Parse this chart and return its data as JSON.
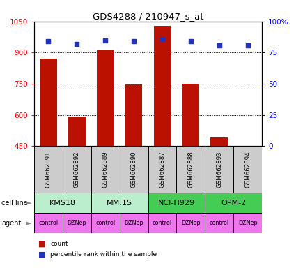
{
  "title": "GDS4288 / 210947_s_at",
  "samples": [
    "GSM662891",
    "GSM662892",
    "GSM662889",
    "GSM662890",
    "GSM662887",
    "GSM662888",
    "GSM662893",
    "GSM662894"
  ],
  "counts": [
    870,
    592,
    910,
    748,
    1030,
    750,
    490,
    452
  ],
  "percentile_ranks": [
    84,
    82,
    85,
    84,
    86,
    84,
    81,
    81
  ],
  "cell_lines": [
    {
      "label": "KMS18",
      "span": [
        0,
        2
      ],
      "color": "#aaeebb"
    },
    {
      "label": "MM.1S",
      "span": [
        2,
        4
      ],
      "color": "#aaeebb"
    },
    {
      "label": "NCI-H929",
      "span": [
        4,
        6
      ],
      "color": "#44dd66"
    },
    {
      "label": "OPM-2",
      "span": [
        6,
        8
      ],
      "color": "#44dd66"
    }
  ],
  "agents": [
    "control",
    "DZNep",
    "control",
    "DZNep",
    "control",
    "DZNep",
    "control",
    "DZNep"
  ],
  "ylim_left": [
    450,
    1050
  ],
  "ylim_right": [
    0,
    100
  ],
  "yticks_left": [
    450,
    600,
    750,
    900,
    1050
  ],
  "yticks_right": [
    0,
    25,
    50,
    75,
    100
  ],
  "ytick_labels_right": [
    "0",
    "25",
    "50",
    "75",
    "100%"
  ],
  "bar_color": "#bb1100",
  "dot_color": "#2233bb",
  "cell_line_color_light": "#bbeecc",
  "cell_line_color_dark": "#44cc55",
  "agent_color": "#ee77ee",
  "sample_bg_color": "#cccccc",
  "legend_count_color": "#bb1100",
  "legend_pct_color": "#2233bb",
  "bar_width": 0.6
}
